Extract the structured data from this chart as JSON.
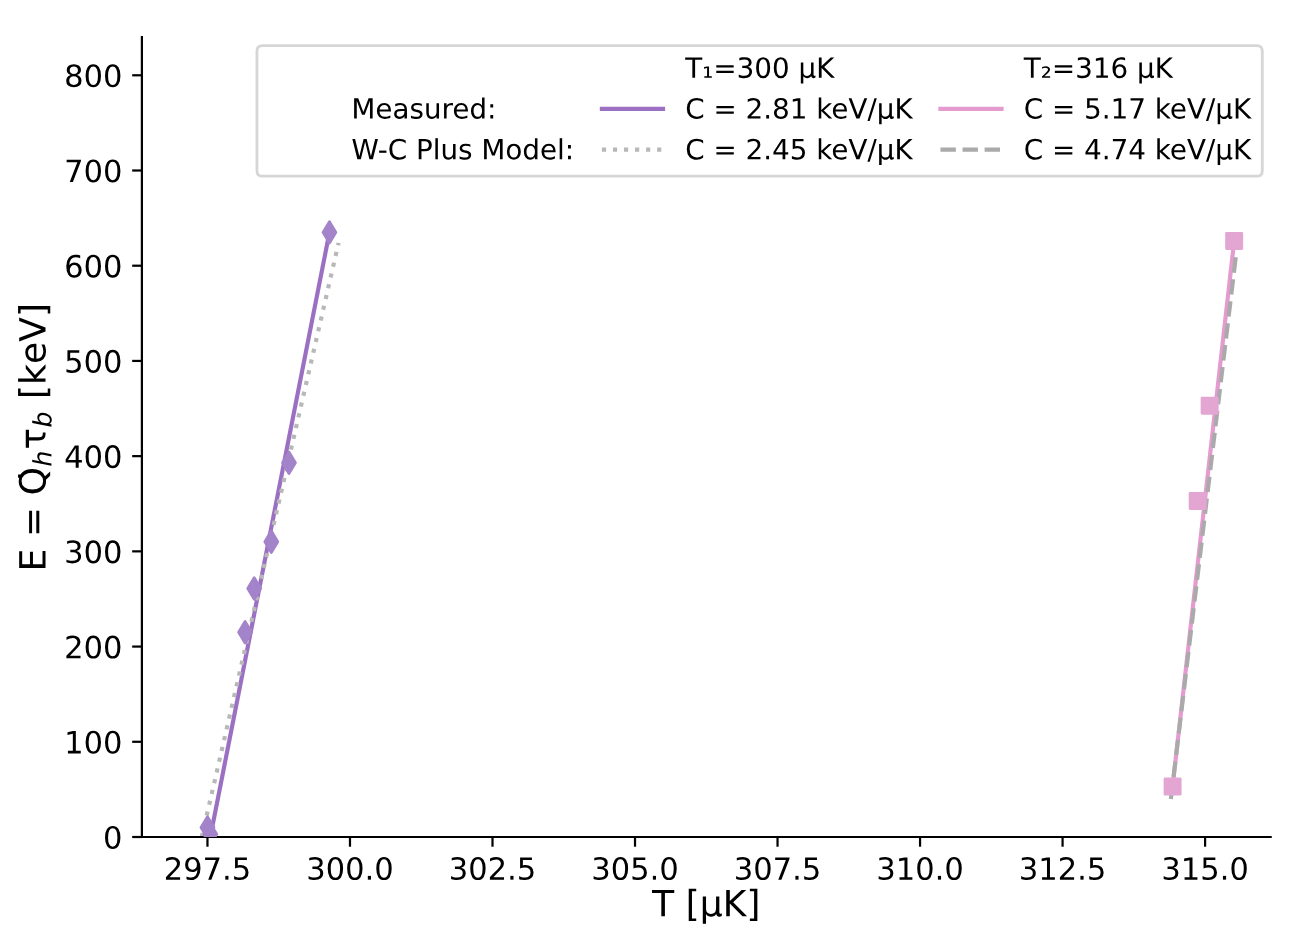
{
  "chart_data": {
    "type": "line",
    "xlabel": "T [µK]",
    "ylabel": "E = Q̇$_{h}$τ$_{b}$ [keV]",
    "xlim": [
      296.35,
      316.15
    ],
    "ylim": [
      0,
      840
    ],
    "xticks": [
      297.5,
      {
        "value": 300,
        "label": "300.0"
      },
      302.5,
      {
        "value": 305,
        "label": "305.0"
      },
      307.5,
      {
        "value": 310,
        "label": "310.0"
      },
      312.5,
      {
        "value": 315,
        "label": "315.0"
      }
    ],
    "yticks": [
      0,
      100,
      200,
      300,
      400,
      500,
      600,
      700,
      800
    ],
    "grid": false,
    "legend": "top right",
    "annotations": [
      "Measured:",
      "W-C Plus Model:",
      "T₁=300 µK",
      "T₂=316 µK"
    ],
    "series": [
      {
        "name": "C = 2.81 keV/µK",
        "line_style": "solid",
        "color": "#9b6fc2",
        "x": [
          297.55,
          299.64
        ],
        "values": [
          0,
          635
        ]
      },
      {
        "name": "C = 2.45 keV/µK",
        "line_style": "dotted",
        "color": "#b8b8b8",
        "x": [
          297.4,
          299.8
        ],
        "values": [
          0,
          624
        ]
      },
      {
        "name": "C = 5.17 keV/µK",
        "line_style": "solid",
        "color": "#e59ad0",
        "x": [
          314.43,
          315.51
        ],
        "values": [
          53,
          626
        ]
      },
      {
        "name": "C = 4.74 keV/µK",
        "line_style": "dashed",
        "color": "#aaaaaa",
        "x": [
          314.4,
          315.55
        ],
        "values": [
          40,
          615
        ]
      },
      {
        "type": "scatter",
        "marker": "diamond",
        "color": "#a383c9",
        "x": [
          297.5,
          297.55,
          298.16,
          298.32,
          298.62,
          298.93,
          299.64
        ],
        "values": [
          10,
          3,
          215,
          261,
          310,
          393,
          635
        ]
      },
      {
        "type": "scatter",
        "marker": "square",
        "color": "#e3a5d2",
        "x": [
          314.43,
          314.87,
          315.08,
          315.51
        ],
        "values": [
          53,
          353,
          453,
          626
        ]
      }
    ]
  }
}
